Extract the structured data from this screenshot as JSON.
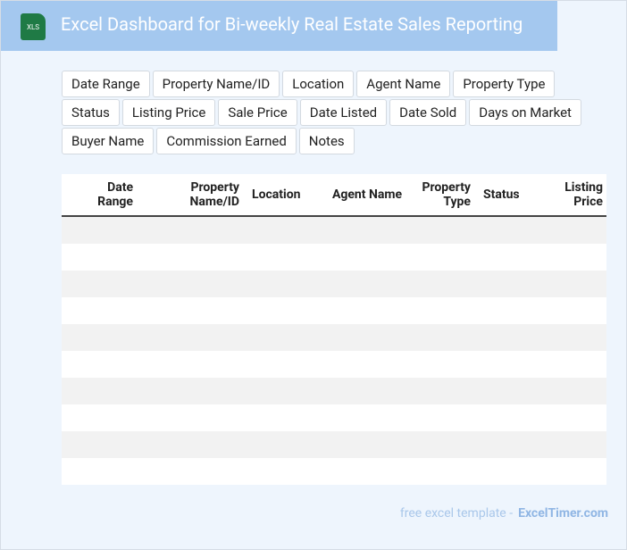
{
  "header": {
    "icon_label": "XLS",
    "title": "Excel Dashboard for Bi-weekly Real Estate Sales Reporting"
  },
  "tags": [
    "Date Range",
    "Property Name/ID",
    "Location",
    "Agent Name",
    "Property Type",
    "Status",
    "Listing Price",
    "Sale Price",
    "Date Listed",
    "Date Sold",
    "Days on Market",
    "Buyer Name",
    "Commission Earned",
    "Notes"
  ],
  "table": {
    "columns": [
      "Date Range",
      "Property Name/ID",
      "Location",
      "Agent Name",
      "Property Type",
      "Status",
      "Listing Price"
    ]
  },
  "footer": {
    "text": "free excel template -",
    "link": "ExcelTimer.com"
  }
}
